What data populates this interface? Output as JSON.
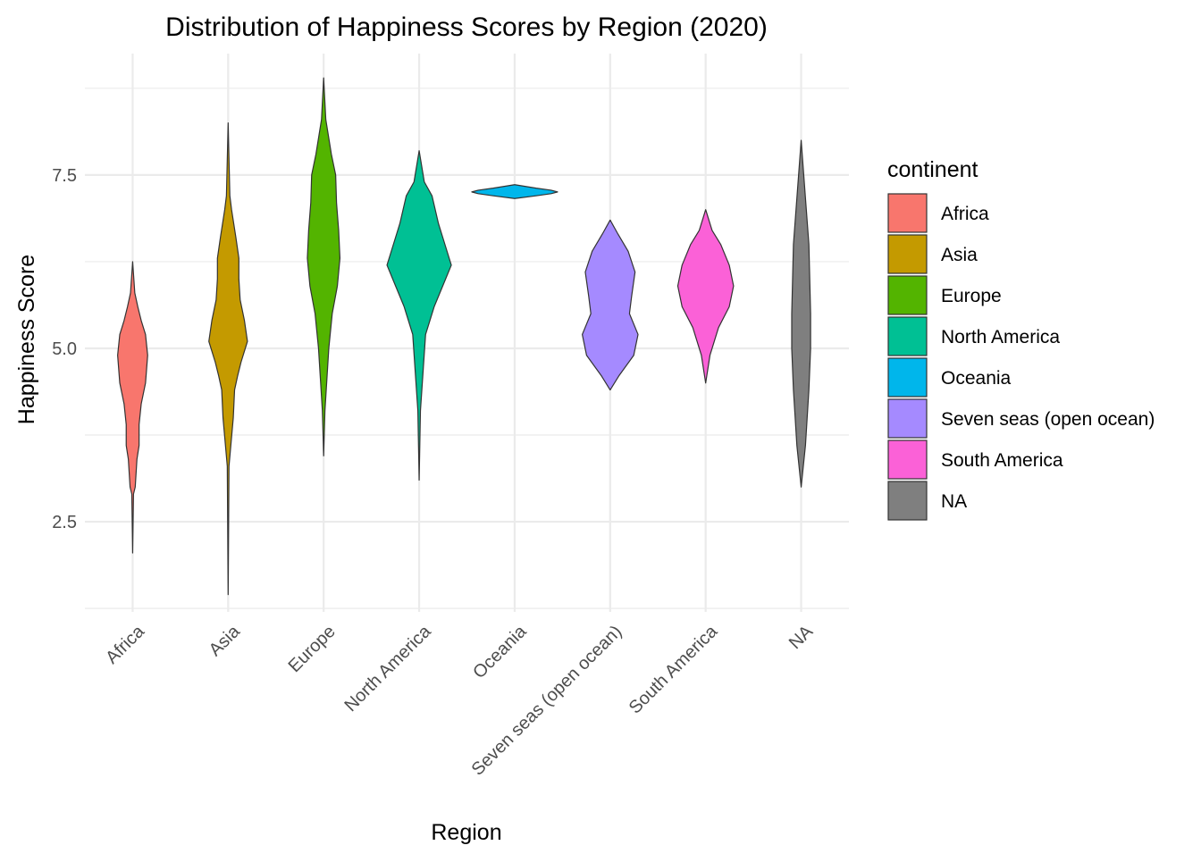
{
  "chart_data": {
    "type": "violin",
    "title": "Distribution of Happiness Scores by Region (2020)",
    "xlabel": "Region",
    "ylabel": "Happiness Score",
    "ylim": [
      1.2,
      9.25
    ],
    "yticks": [
      2.5,
      5.0,
      7.5
    ],
    "ytick_labels": [
      "2.5",
      "5.0",
      "7.5"
    ],
    "grid": true,
    "legend": {
      "title": "continent",
      "placement": "right",
      "entries": [
        "Africa",
        "Asia",
        "Europe",
        "North America",
        "Oceania",
        "Seven seas (open ocean)",
        "South America",
        "NA"
      ]
    },
    "categories": [
      "Africa",
      "Asia",
      "Europe",
      "North America",
      "Oceania",
      "Seven seas (open ocean)",
      "South America",
      "NA"
    ],
    "colors": [
      "#F8766D",
      "#C49A00",
      "#53B400",
      "#00C094",
      "#00B6EB",
      "#A58AFF",
      "#FB61D7",
      "#7F7F7F"
    ],
    "series": [
      {
        "name": "Africa",
        "min": 2.05,
        "max": 6.25,
        "profile": [
          [
            2.05,
            0.0
          ],
          [
            2.9,
            0.02
          ],
          [
            3.0,
            0.06
          ],
          [
            3.4,
            0.1
          ],
          [
            3.6,
            0.15
          ],
          [
            3.9,
            0.15
          ],
          [
            4.2,
            0.2
          ],
          [
            4.5,
            0.3
          ],
          [
            4.9,
            0.35
          ],
          [
            5.2,
            0.3
          ],
          [
            5.4,
            0.2
          ],
          [
            5.6,
            0.12
          ],
          [
            5.8,
            0.05
          ],
          [
            6.25,
            0.0
          ]
        ]
      },
      {
        "name": "Asia",
        "min": 1.45,
        "max": 8.25,
        "profile": [
          [
            1.45,
            0.0
          ],
          [
            3.3,
            0.02
          ],
          [
            4.0,
            0.12
          ],
          [
            4.4,
            0.15
          ],
          [
            4.6,
            0.22
          ],
          [
            4.8,
            0.3
          ],
          [
            5.1,
            0.45
          ],
          [
            5.4,
            0.38
          ],
          [
            5.7,
            0.28
          ],
          [
            6.0,
            0.25
          ],
          [
            6.3,
            0.25
          ],
          [
            6.6,
            0.18
          ],
          [
            7.0,
            0.08
          ],
          [
            7.2,
            0.04
          ],
          [
            8.25,
            0.0
          ]
        ]
      },
      {
        "name": "Europe",
        "min": 3.45,
        "max": 8.9,
        "profile": [
          [
            3.45,
            0.0
          ],
          [
            4.1,
            0.03
          ],
          [
            5.0,
            0.12
          ],
          [
            5.5,
            0.2
          ],
          [
            5.9,
            0.32
          ],
          [
            6.3,
            0.38
          ],
          [
            6.7,
            0.35
          ],
          [
            7.1,
            0.3
          ],
          [
            7.5,
            0.28
          ],
          [
            7.8,
            0.18
          ],
          [
            8.3,
            0.05
          ],
          [
            8.9,
            0.0
          ]
        ]
      },
      {
        "name": "North America",
        "min": 3.1,
        "max": 7.85,
        "profile": [
          [
            3.1,
            0.0
          ],
          [
            4.1,
            0.03
          ],
          [
            5.2,
            0.15
          ],
          [
            5.6,
            0.35
          ],
          [
            5.9,
            0.55
          ],
          [
            6.2,
            0.75
          ],
          [
            6.5,
            0.6
          ],
          [
            6.8,
            0.45
          ],
          [
            7.2,
            0.3
          ],
          [
            7.4,
            0.12
          ],
          [
            7.85,
            0.0
          ]
        ]
      },
      {
        "name": "Oceania",
        "min": 7.16,
        "max": 7.36,
        "profile": [
          [
            7.16,
            0.0
          ],
          [
            7.2,
            0.5
          ],
          [
            7.23,
            0.85
          ],
          [
            7.255,
            1.0
          ],
          [
            7.28,
            0.85
          ],
          [
            7.31,
            0.5
          ],
          [
            7.36,
            0.0
          ]
        ]
      },
      {
        "name": "Seven seas (open ocean)",
        "min": 4.4,
        "max": 6.85,
        "profile": [
          [
            4.4,
            0.0
          ],
          [
            4.6,
            0.2
          ],
          [
            4.9,
            0.55
          ],
          [
            5.2,
            0.65
          ],
          [
            5.5,
            0.45
          ],
          [
            5.75,
            0.5
          ],
          [
            6.1,
            0.58
          ],
          [
            6.4,
            0.42
          ],
          [
            6.65,
            0.18
          ],
          [
            6.85,
            0.0
          ]
        ]
      },
      {
        "name": "South America",
        "min": 4.5,
        "max": 7.0,
        "profile": [
          [
            4.5,
            0.0
          ],
          [
            4.9,
            0.1
          ],
          [
            5.3,
            0.3
          ],
          [
            5.6,
            0.55
          ],
          [
            5.9,
            0.65
          ],
          [
            6.2,
            0.55
          ],
          [
            6.5,
            0.35
          ],
          [
            6.7,
            0.15
          ],
          [
            7.0,
            0.0
          ]
        ]
      },
      {
        "name": "NA",
        "min": 3.0,
        "max": 8.0,
        "profile": [
          [
            3.0,
            0.0
          ],
          [
            3.6,
            0.1
          ],
          [
            4.4,
            0.18
          ],
          [
            5.0,
            0.22
          ],
          [
            5.5,
            0.22
          ],
          [
            6.0,
            0.2
          ],
          [
            6.5,
            0.18
          ],
          [
            7.0,
            0.12
          ],
          [
            7.5,
            0.06
          ],
          [
            8.0,
            0.0
          ]
        ]
      }
    ]
  }
}
